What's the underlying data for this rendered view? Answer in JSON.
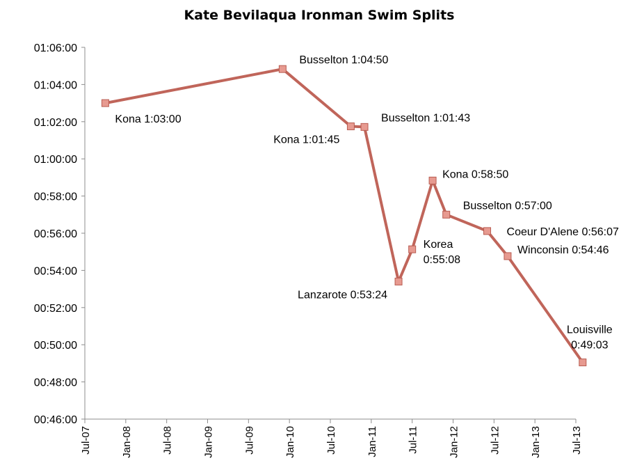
{
  "chart_data": {
    "type": "line",
    "title": "Kate Bevilaqua Ironman Swim Splits",
    "xlabel": "",
    "ylabel": "",
    "x_ticks": [
      "Jul-07",
      "Jan-08",
      "Jul-08",
      "Jan-09",
      "Jul-09",
      "Jan-10",
      "Jul-10",
      "Jan-11",
      "Jul-11",
      "Jan-12",
      "Jul-12",
      "Jan-13",
      "Jul-13"
    ],
    "x_range": [
      "2007-07",
      "2013-07"
    ],
    "y_ticks": [
      "00:46:00",
      "00:48:00",
      "00:50:00",
      "00:52:00",
      "00:54:00",
      "00:56:00",
      "00:58:00",
      "01:00:00",
      "01:02:00",
      "01:04:00",
      "01:06:00"
    ],
    "ylim": [
      "00:46:00",
      "01:06:00"
    ],
    "grid": false,
    "legend": "none",
    "line_color": "#c0655a",
    "marker_color": "#e79a90",
    "series": [
      {
        "points": [
          {
            "x": "2007-10",
            "y": "1:03:00",
            "label": "Kona 1:03:00",
            "label_pos": "below-right"
          },
          {
            "x": "2009-12",
            "y": "1:04:50",
            "label": "Busselton 1:04:50",
            "label_pos": "above-right"
          },
          {
            "x": "2010-10",
            "y": "1:01:45",
            "label": "Kona 1:01:45",
            "label_pos": "below-left"
          },
          {
            "x": "2010-12",
            "y": "1:01:43",
            "label": "Busselton 1:01:43",
            "label_pos": "above-right"
          },
          {
            "x": "2011-05",
            "y": "0:53:24",
            "label": "Lanzarote 0:53:24",
            "label_pos": "below-left"
          },
          {
            "x": "2011-07",
            "y": "0:55:08",
            "label": "Korea\n0:55:08",
            "label_pos": "right"
          },
          {
            "x": "2011-10",
            "y": "0:58:50",
            "label": "Kona 0:58:50",
            "label_pos": "right"
          },
          {
            "x": "2011-12",
            "y": "0:57:00",
            "label": "Busselton 0:57:00",
            "label_pos": "above-right"
          },
          {
            "x": "2012-06",
            "y": "0:56:07",
            "label": "Coeur D'Alene 0:56:07",
            "label_pos": "right-far"
          },
          {
            "x": "2012-09",
            "y": "0:54:46",
            "label": "Winconsin 0:54:46",
            "label_pos": "right"
          },
          {
            "x": "2013-08",
            "y": "0:49:03",
            "label": "Louisville\n0:49:03",
            "label_pos": "above"
          }
        ]
      }
    ]
  }
}
